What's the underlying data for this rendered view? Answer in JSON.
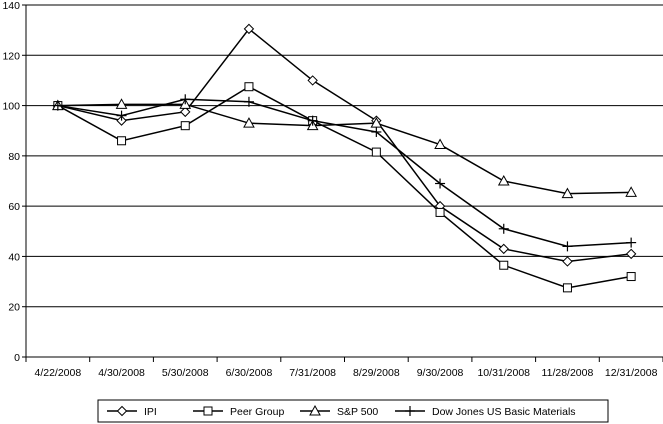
{
  "chart_data": {
    "type": "line",
    "title": "",
    "xlabel": "",
    "ylabel": "",
    "categories": [
      "4/22/2008",
      "4/30/2008",
      "5/30/2008",
      "6/30/2008",
      "7/31/2008",
      "8/29/2008",
      "9/30/2008",
      "10/31/2008",
      "11/28/2008",
      "12/31/2008"
    ],
    "ylim": [
      0,
      140
    ],
    "yticks": [
      0,
      20,
      40,
      60,
      80,
      100,
      120,
      140
    ],
    "grid": true,
    "legend_position": "bottom",
    "series": [
      {
        "name": "IPI",
        "marker": "diamond",
        "values": [
          100,
          94,
          97.5,
          130.5,
          110,
          94,
          60,
          43,
          38,
          41
        ]
      },
      {
        "name": "Peer Group",
        "marker": "square",
        "values": [
          100,
          86,
          92,
          107.5,
          94,
          81.5,
          57.5,
          36.5,
          27.5,
          32
        ]
      },
      {
        "name": "S&P 500",
        "marker": "triangle",
        "values": [
          100,
          100.5,
          100.5,
          93,
          92,
          93,
          84.5,
          70,
          65,
          65.5
        ]
      },
      {
        "name": "Dow Jones US Basic Materials",
        "marker": "plus",
        "values": [
          100,
          96,
          102.5,
          101.5,
          94,
          89.5,
          69,
          51,
          44,
          45.5
        ]
      }
    ]
  }
}
